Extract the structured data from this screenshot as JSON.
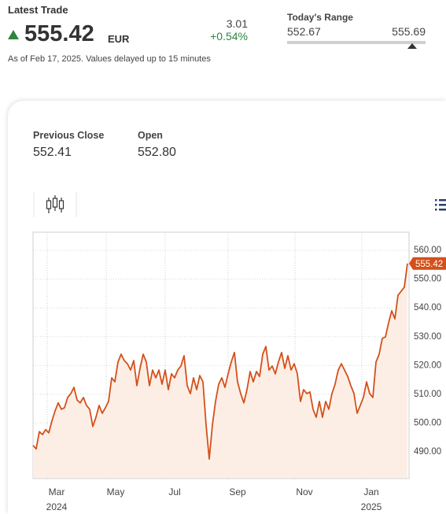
{
  "latest_trade": {
    "label": "Latest Trade",
    "price": "555.42",
    "currency": "EUR",
    "change": "3.01",
    "change_pct": "+0.54%",
    "note": "As of Feb 17, 2025. Values delayed up to 15 minutes"
  },
  "todays_range": {
    "label": "Today's Range",
    "low": "552.67",
    "high": "555.69"
  },
  "stats": [
    {
      "label": "Previous Close",
      "value": "552.41"
    },
    {
      "label": "Open",
      "value": "552.80"
    }
  ],
  "chart_data": {
    "type": "line",
    "color": "#d4501a",
    "fill_color": "#fdeee5",
    "values": [
      492.2,
      491,
      497,
      496,
      497.7,
      496.6,
      500.7,
      504.2,
      507,
      504.8,
      505.3,
      508.9,
      510.2,
      512.4,
      508,
      507,
      508.9,
      506.1,
      504.8,
      498.8,
      502,
      506.1,
      503.4,
      505.3,
      507.5,
      515.7,
      514.3,
      521.2,
      523.9,
      521.7,
      520.6,
      518.4,
      521.7,
      513,
      519,
      523.9,
      521.2,
      513,
      518.4,
      515.7,
      518.4,
      513.5,
      518.4,
      511.6,
      517.1,
      515.7,
      518.4,
      519.8,
      523.4,
      513,
      510.2,
      515.7,
      511.6,
      516.5,
      514.3,
      499.3,
      487.5,
      499.3,
      507.5,
      513.5,
      515.7,
      512.4,
      517.1,
      521.2,
      524.5,
      514.3,
      510.2,
      507,
      511.6,
      517.9,
      514.3,
      517.9,
      516.2,
      523.9,
      526.6,
      518.4,
      519.8,
      517.1,
      521.2,
      524.5,
      519,
      523.4,
      518.4,
      520.6,
      517.1,
      507.5,
      511.6,
      510.2,
      510.8,
      504.8,
      502,
      507.5,
      502,
      507.5,
      504.8,
      510.2,
      513.5,
      518.4,
      520.6,
      518.4,
      516.2,
      513,
      510.2,
      503.4,
      506.1,
      508.9,
      514.3,
      510.2,
      508.9,
      521.2,
      523.9,
      529.4,
      529.9,
      534.8,
      539,
      536.2,
      544.4,
      545.8,
      547.2,
      555.42
    ],
    "xlim": [
      0,
      119.5
    ],
    "xticks": [
      {
        "value": 4.5,
        "label": "Mar"
      },
      {
        "value": 23.25,
        "label": "May"
      },
      {
        "value": 42,
        "label": "Jul"
      },
      {
        "value": 62,
        "label": "Sep"
      },
      {
        "value": 83.25,
        "label": "Nov"
      },
      {
        "value": 104.5,
        "label": "Jan"
      }
    ],
    "xtick_years": [
      {
        "value": 4.5,
        "label": "2024"
      },
      {
        "value": 104.5,
        "label": "2025"
      }
    ],
    "ylim": [
      480.7,
      566.3
    ],
    "yticks": [
      {
        "value": 490,
        "label": "490.00"
      },
      {
        "value": 500,
        "label": "500.00"
      },
      {
        "value": 510,
        "label": "510.00"
      },
      {
        "value": 520,
        "label": "520.00"
      },
      {
        "value": 530,
        "label": "530.00"
      },
      {
        "value": 540,
        "label": "540.00"
      },
      {
        "value": 550,
        "label": "550.00"
      },
      {
        "value": 560,
        "label": "560.00"
      }
    ],
    "grid": true
  }
}
